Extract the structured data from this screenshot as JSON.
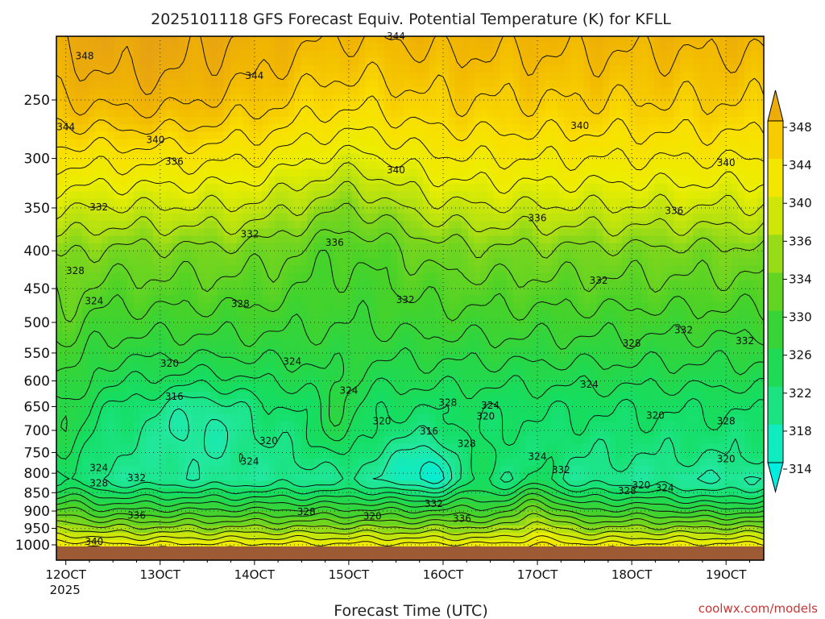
{
  "chart_data": {
    "type": "heatmap",
    "title": "2025101118 GFS Forecast Equiv. Potential Temperature (K) for KFLL",
    "xlabel": "Forecast Time (UTC)",
    "ylabel": "",
    "x_ticks": [
      {
        "label": "12OCT",
        "sub": "2025",
        "day": 12
      },
      {
        "label": "13OCT",
        "day": 13
      },
      {
        "label": "14OCT",
        "day": 14
      },
      {
        "label": "15OCT",
        "day": 15
      },
      {
        "label": "16OCT",
        "day": 16
      },
      {
        "label": "17OCT",
        "day": 17
      },
      {
        "label": "18OCT",
        "day": 18
      },
      {
        "label": "19OCT",
        "day": 19
      }
    ],
    "xlim": [
      11.9,
      19.4
    ],
    "y_ticks": [
      250,
      300,
      350,
      400,
      450,
      500,
      550,
      600,
      650,
      700,
      750,
      800,
      850,
      900,
      950,
      1000
    ],
    "ylim_hpa": [
      200,
      1010
    ],
    "colorbar": {
      "levels": [
        314,
        318,
        322,
        326,
        330,
        334,
        336,
        340,
        344,
        348
      ],
      "units": "K"
    },
    "contour_labels": [
      {
        "text": "348",
        "x": 12.2,
        "p": 218
      },
      {
        "text": "344",
        "x": 14.0,
        "p": 232
      },
      {
        "text": "344",
        "x": 15.5,
        "p": 205
      },
      {
        "text": "344",
        "x": 12.0,
        "p": 272
      },
      {
        "text": "340",
        "x": 12.95,
        "p": 283
      },
      {
        "text": "340",
        "x": 15.5,
        "p": 311
      },
      {
        "text": "340",
        "x": 17.45,
        "p": 271
      },
      {
        "text": "340",
        "x": 19.0,
        "p": 304
      },
      {
        "text": "336",
        "x": 13.15,
        "p": 303
      },
      {
        "text": "336",
        "x": 14.85,
        "p": 390
      },
      {
        "text": "336",
        "x": 17.0,
        "p": 361
      },
      {
        "text": "336",
        "x": 18.45,
        "p": 353
      },
      {
        "text": "332",
        "x": 12.35,
        "p": 349
      },
      {
        "text": "332",
        "x": 13.95,
        "p": 380
      },
      {
        "text": "332",
        "x": 15.6,
        "p": 466
      },
      {
        "text": "332",
        "x": 17.65,
        "p": 439
      },
      {
        "text": "332",
        "x": 18.55,
        "p": 512
      },
      {
        "text": "332",
        "x": 19.2,
        "p": 530
      },
      {
        "text": "328",
        "x": 12.1,
        "p": 426
      },
      {
        "text": "328",
        "x": 13.85,
        "p": 472
      },
      {
        "text": "328",
        "x": 16.05,
        "p": 642
      },
      {
        "text": "328",
        "x": 18.0,
        "p": 534
      },
      {
        "text": "328",
        "x": 19.0,
        "p": 680
      },
      {
        "text": "328",
        "x": 12.35,
        "p": 825
      },
      {
        "text": "328",
        "x": 14.55,
        "p": 902
      },
      {
        "text": "328",
        "x": 16.25,
        "p": 730
      },
      {
        "text": "328",
        "x": 17.95,
        "p": 845
      },
      {
        "text": "324",
        "x": 12.3,
        "p": 468
      },
      {
        "text": "324",
        "x": 14.4,
        "p": 565
      },
      {
        "text": "324",
        "x": 15.0,
        "p": 618
      },
      {
        "text": "324",
        "x": 16.5,
        "p": 648
      },
      {
        "text": "324",
        "x": 17.55,
        "p": 607
      },
      {
        "text": "324",
        "x": 12.35,
        "p": 787
      },
      {
        "text": "324",
        "x": 13.95,
        "p": 771
      },
      {
        "text": "324",
        "x": 17.0,
        "p": 760
      },
      {
        "text": "324",
        "x": 18.35,
        "p": 838
      },
      {
        "text": "320",
        "x": 13.1,
        "p": 568
      },
      {
        "text": "320",
        "x": 14.15,
        "p": 723
      },
      {
        "text": "320",
        "x": 15.35,
        "p": 680
      },
      {
        "text": "320",
        "x": 16.45,
        "p": 670
      },
      {
        "text": "320",
        "x": 18.25,
        "p": 668
      },
      {
        "text": "320",
        "x": 18.1,
        "p": 830
      },
      {
        "text": "320",
        "x": 15.25,
        "p": 915
      },
      {
        "text": "320",
        "x": 19.0,
        "p": 765
      },
      {
        "text": "316",
        "x": 13.15,
        "p": 630
      },
      {
        "text": "316",
        "x": 15.85,
        "p": 702
      },
      {
        "text": "332",
        "x": 12.75,
        "p": 812
      },
      {
        "text": "332",
        "x": 17.25,
        "p": 792
      },
      {
        "text": "332",
        "x": 15.9,
        "p": 880
      },
      {
        "text": "336",
        "x": 12.75,
        "p": 912
      },
      {
        "text": "336",
        "x": 16.2,
        "p": 922
      },
      {
        "text": "340",
        "x": 12.3,
        "p": 990
      }
    ]
  },
  "credit": "coolwx.com/models"
}
